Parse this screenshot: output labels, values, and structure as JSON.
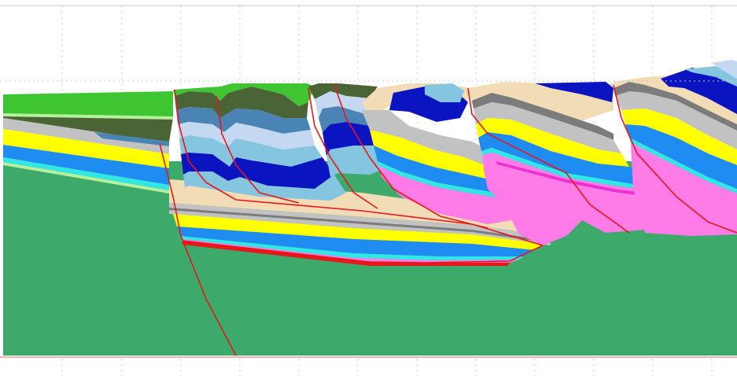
{
  "colors": {
    "background": "#ffffff",
    "grid": "#c8c8c8",
    "basement": "#3daa6c",
    "fault": "#e8171b",
    "green_top": "#3fc432",
    "olive": "#4b6436",
    "light_green": "#b7f09a",
    "steel_blue": "#4a84b4",
    "sky": "#85c5e0",
    "pale_blue": "#c5d8f2",
    "navy": "#0a14c0",
    "tan": "#f2dcb6",
    "gray": "#7c7c7c",
    "light_gray": "#c2c2c2",
    "yellow": "#ffff00",
    "azure": "#1e8cf0",
    "aqua": "#33e6e6",
    "magenta": "#ff7be8",
    "hot_pink": "#ee2fcf",
    "bottom_line": "#f09a9a"
  }
}
